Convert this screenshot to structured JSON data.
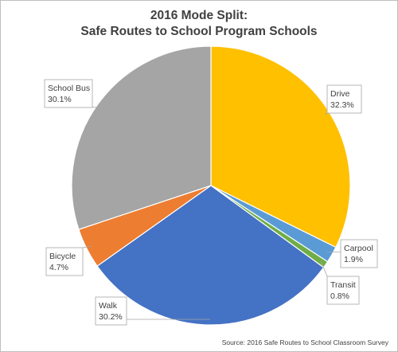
{
  "chart_data": {
    "type": "pie",
    "title_lines": [
      "2016 Mode Split:",
      "Safe Routes to School Program Schools"
    ],
    "categories": [
      "Drive",
      "Carpool",
      "Transit",
      "Walk",
      "Bicycle",
      "School Bus"
    ],
    "values": [
      32.3,
      1.9,
      0.8,
      30.2,
      4.7,
      30.1
    ],
    "value_labels": [
      "32.3%",
      "1.9%",
      "0.8%",
      "30.2%",
      "4.7%",
      "30.1%"
    ],
    "colors": [
      "#FFC000",
      "#5B9BD5",
      "#70AD47",
      "#4472C4",
      "#ED7D31",
      "#A5A5A5"
    ],
    "source": "Source: 2016  Safe Routes to School Classroom Survey"
  }
}
